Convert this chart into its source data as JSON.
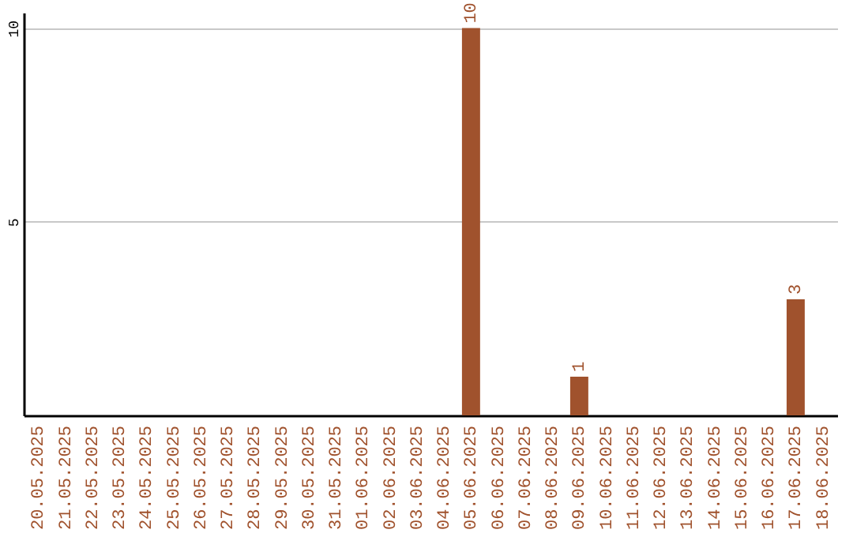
{
  "chart_data": {
    "type": "bar",
    "categories": [
      "20.05.2025",
      "21.05.2025",
      "22.05.2025",
      "23.05.2025",
      "24.05.2025",
      "25.05.2025",
      "26.05.2025",
      "27.05.2025",
      "28.05.2025",
      "29.05.2025",
      "30.05.2025",
      "31.05.2025",
      "01.06.2025",
      "02.06.2025",
      "03.06.2025",
      "04.06.2025",
      "05.06.2025",
      "06.06.2025",
      "07.06.2025",
      "08.06.2025",
      "09.06.2025",
      "10.06.2025",
      "11.06.2025",
      "12.06.2025",
      "13.06.2025",
      "14.06.2025",
      "15.06.2025",
      "16.06.2025",
      "17.06.2025",
      "18.06.2025"
    ],
    "values": [
      0,
      0,
      0,
      0,
      0,
      0,
      0,
      0,
      0,
      0,
      0,
      0,
      0,
      0,
      0,
      0,
      10,
      0,
      0,
      0,
      1,
      0,
      0,
      0,
      0,
      0,
      0,
      0,
      3,
      0
    ],
    "value_labels": [
      null,
      null,
      null,
      null,
      null,
      null,
      null,
      null,
      null,
      null,
      null,
      null,
      null,
      null,
      null,
      null,
      "10",
      null,
      null,
      null,
      "1",
      null,
      null,
      null,
      null,
      null,
      null,
      null,
      "3",
      null
    ],
    "color": "#a0522d",
    "ylim": [
      0,
      10.4
    ],
    "yticks": [
      5,
      10
    ],
    "grid": true
  }
}
